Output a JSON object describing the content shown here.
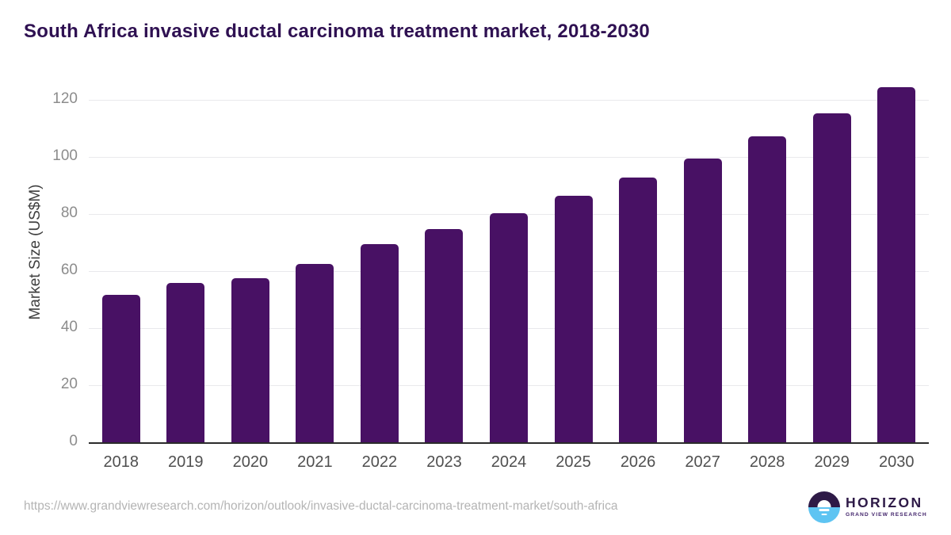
{
  "page": {
    "title": "South Africa invasive ductal carcinoma treatment market, 2018-2030"
  },
  "chart_data": {
    "type": "bar",
    "title": "South Africa invasive ductal carcinoma treatment market, 2018-2030",
    "categories": [
      "2018",
      "2019",
      "2020",
      "2021",
      "2022",
      "2023",
      "2024",
      "2025",
      "2026",
      "2027",
      "2028",
      "2029",
      "2030"
    ],
    "values": [
      51.7,
      55.9,
      57.4,
      62.4,
      69.4,
      74.7,
      80.3,
      86.3,
      92.7,
      99.4,
      107.1,
      115.2,
      124.3
    ],
    "xlabel": "",
    "ylabel": "Market Size (US$M)",
    "yticks": [
      0,
      20,
      40,
      60,
      80,
      100,
      120
    ],
    "ylim": [
      0,
      133.3
    ],
    "grid": true,
    "legend": "none",
    "bar_color": "#481164"
  },
  "footer": {
    "source_url": "https://www.grandviewresearch.com/horizon/outlook/invasive-ductal-carcinoma-treatment-market/south-africa",
    "logo": {
      "brand": "HORIZON",
      "tagline": "GRAND VIEW RESEARCH"
    }
  },
  "colors": {
    "title_text": "#2f1152",
    "bar": "#481164",
    "axis_line": "#2b2b2b",
    "gridline": "#e9e9ec",
    "y_tick_label": "#8c8c8c",
    "x_tick_label": "#4f4f4f",
    "url_text": "#b4b4b4",
    "logo_dark": "#2e1a47",
    "logo_blue": "#5ec4f2"
  }
}
